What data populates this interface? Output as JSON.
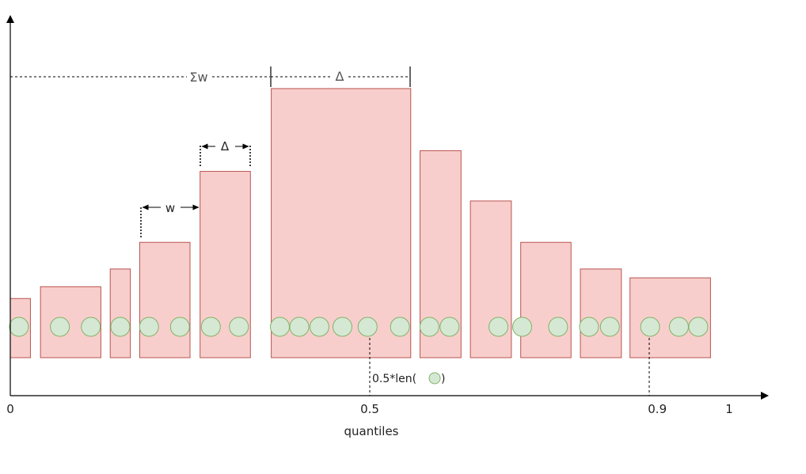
{
  "labels": {
    "sum_w": "Σw",
    "delta_top": "Δ",
    "delta_mid": "Δ",
    "w": "w",
    "median_prefix": "0.5*len(",
    "median_suffix": ")",
    "x_axis_title": "quantiles"
  },
  "ticks": [
    {
      "value": 0,
      "label": "0"
    },
    {
      "value": 0.5,
      "label": "0.5"
    },
    {
      "value": 0.9,
      "label": "0.9"
    },
    {
      "value": 1,
      "label": "1"
    }
  ],
  "bins": [
    {
      "start": 0.0,
      "end": 0.028,
      "height": 0.2
    },
    {
      "start": 0.042,
      "end": 0.126,
      "height": 0.24
    },
    {
      "start": 0.139,
      "end": 0.167,
      "height": 0.3
    },
    {
      "start": 0.18,
      "end": 0.25,
      "height": 0.39
    },
    {
      "start": 0.264,
      "end": 0.334,
      "height": 0.63
    },
    {
      "start": 0.363,
      "end": 0.557,
      "height": 0.91
    },
    {
      "start": 0.57,
      "end": 0.627,
      "height": 0.7
    },
    {
      "start": 0.64,
      "end": 0.697,
      "height": 0.53
    },
    {
      "start": 0.71,
      "end": 0.78,
      "height": 0.39
    },
    {
      "start": 0.793,
      "end": 0.85,
      "height": 0.3
    },
    {
      "start": 0.862,
      "end": 0.974,
      "height": 0.27
    }
  ],
  "points": [
    0.012,
    0.069,
    0.112,
    0.153,
    0.193,
    0.236,
    0.279,
    0.318,
    0.375,
    0.402,
    0.43,
    0.462,
    0.497,
    0.542,
    0.583,
    0.611,
    0.679,
    0.712,
    0.762,
    0.805,
    0.834,
    0.89,
    0.93,
    0.957
  ],
  "markers": {
    "sum_w_level": 0.95,
    "median_q": 0.5,
    "p90_q": 0.9
  },
  "colors": {
    "bar_fill": "#f8cecc",
    "bar_stroke": "#b85450",
    "point_fill": "#d5e8d4",
    "point_stroke": "#82b366",
    "axis": "#000000"
  }
}
